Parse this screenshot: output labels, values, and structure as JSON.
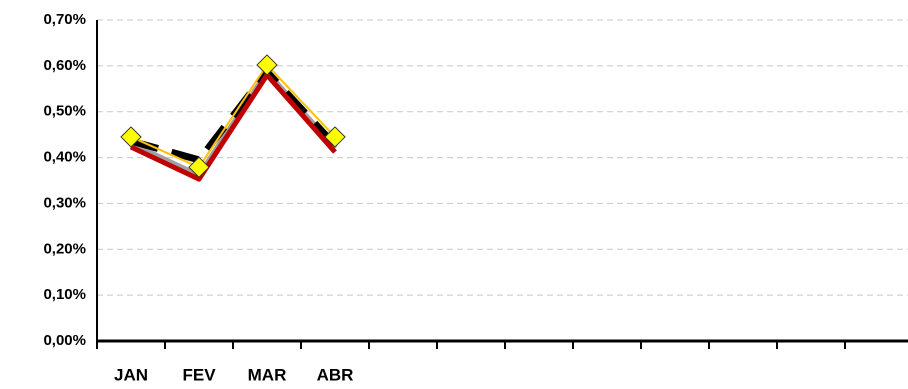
{
  "chart_data": {
    "type": "line",
    "categories": [
      "JAN",
      "FEV",
      "MAR",
      "ABR",
      null,
      null,
      null,
      null,
      null,
      null,
      null,
      null
    ],
    "series": [
      {
        "color": "#a0a0a0",
        "width": 6,
        "values": [
          0.43,
          0.36,
          0.585,
          0.42,
          null,
          null,
          null,
          null,
          null,
          null,
          null,
          null
        ]
      },
      {
        "color": "#000000",
        "width": 7,
        "dash": true,
        "values": [
          0.436,
          0.395,
          0.587,
          0.427,
          null,
          null,
          null,
          null,
          null,
          null,
          null,
          null
        ]
      },
      {
        "color": "#c00000",
        "width": 5,
        "values": [
          0.423,
          0.353,
          0.58,
          0.412,
          null,
          null,
          null,
          null,
          null,
          null,
          null,
          null
        ]
      },
      {
        "color": "#ffc000",
        "width": 2,
        "marker": "diamond",
        "marker_color": "#ffff00",
        "values": [
          0.445,
          0.379,
          0.602,
          0.445,
          null,
          null,
          null,
          null,
          null,
          null,
          null,
          null
        ]
      }
    ],
    "ylim": [
      0,
      0.7
    ],
    "yticks": [
      {
        "value": 0,
        "label": "0,00%"
      },
      {
        "value": 0.1,
        "label": "0,10%"
      },
      {
        "value": 0.2,
        "label": "0,20%"
      },
      {
        "value": 0.3,
        "label": "0,30%"
      },
      {
        "value": 0.4,
        "label": "0,40%"
      },
      {
        "value": 0.5,
        "label": "0,50%"
      },
      {
        "value": 0.6,
        "label": "0,60%"
      },
      {
        "value": 0.7,
        "label": "0,70%"
      }
    ],
    "grid": true
  }
}
